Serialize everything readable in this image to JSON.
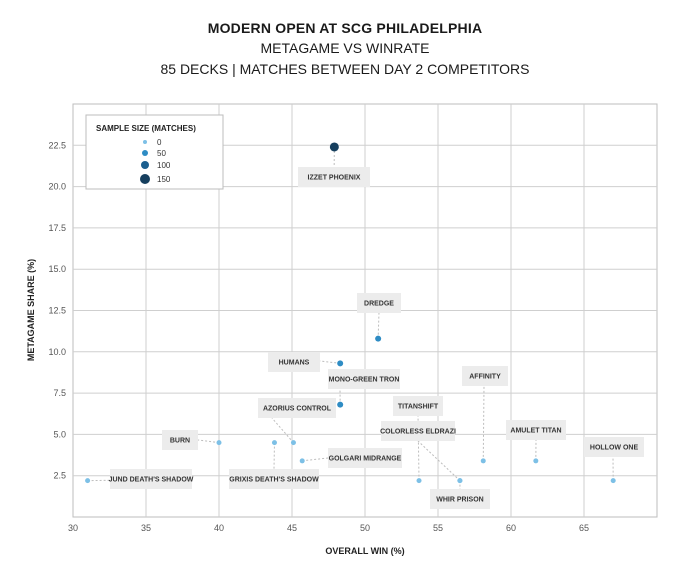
{
  "chart_data": {
    "type": "scatter",
    "title": "MODERN OPEN AT SCG PHILADELPHIA",
    "subtitle_1": "METAGAME VS WINRATE",
    "subtitle_2": "85 DECKS | MATCHES BETWEEN DAY 2 COMPETITORS",
    "xlabel": "OVERALL WIN (%)",
    "ylabel": "METAGAME SHARE (%)",
    "xlim": [
      30,
      70
    ],
    "ylim": [
      0,
      25
    ],
    "xticks": [
      "30",
      "35",
      "40",
      "45",
      "50",
      "55",
      "60",
      "65"
    ],
    "yticks": [
      "2.5",
      "5.0",
      "7.5",
      "10.0",
      "12.5",
      "15.0",
      "17.5",
      "20.0",
      "22.5"
    ],
    "grid": true,
    "legend": {
      "title": "SAMPLE SIZE (MATCHES)",
      "placement": "top-left",
      "entries": [
        "0",
        "50",
        "100",
        "150"
      ]
    },
    "points": [
      {
        "label": "IZZET PHOENIX",
        "x": 47.9,
        "y": 22.4,
        "size": 150
      },
      {
        "label": "DREDGE",
        "x": 50.9,
        "y": 10.8,
        "size": 50
      },
      {
        "label": "HUMANS",
        "x": 48.3,
        "y": 9.3,
        "size": 50
      },
      {
        "label": "MONO-GREEN TRON",
        "x": 48.3,
        "y": 6.8,
        "size": 50
      },
      {
        "label": "AZORIUS CONTROL",
        "x": 45.1,
        "y": 4.5,
        "size": 0
      },
      {
        "label": "BURN",
        "x": 40.0,
        "y": 4.5,
        "size": 0
      },
      {
        "label": "GRIXIS DEATH'S SHADOW",
        "x": 43.8,
        "y": 4.5,
        "size": 0
      },
      {
        "label": "GOLGARI MIDRANGE",
        "x": 45.7,
        "y": 3.4,
        "size": 0
      },
      {
        "label": "JUND DEATH'S SHADOW",
        "x": 31.0,
        "y": 2.2,
        "size": 0
      },
      {
        "label": "TITANSHIFT",
        "x": 53.7,
        "y": 2.2,
        "size": 0
      },
      {
        "label": "COLORLESS ELDRAZI",
        "x": 56.5,
        "y": 2.2,
        "size": 0
      },
      {
        "label": "WHIR PRISON",
        "x": 56.5,
        "y": 2.2,
        "size": 0
      },
      {
        "label": "AFFINITY",
        "x": 58.1,
        "y": 3.4,
        "size": 0
      },
      {
        "label": "AMULET TITAN",
        "x": 61.7,
        "y": 3.4,
        "size": 0
      },
      {
        "label": "HOLLOW ONE",
        "x": 67.0,
        "y": 2.2,
        "size": 0
      }
    ],
    "colors": {
      "small": "#7dc0e6",
      "medium": "#2e8cc4",
      "large": "#1b5f8f",
      "xlarge": "#163f5e",
      "grid": "#cfcfcf",
      "label_bg": "#ececec"
    }
  }
}
